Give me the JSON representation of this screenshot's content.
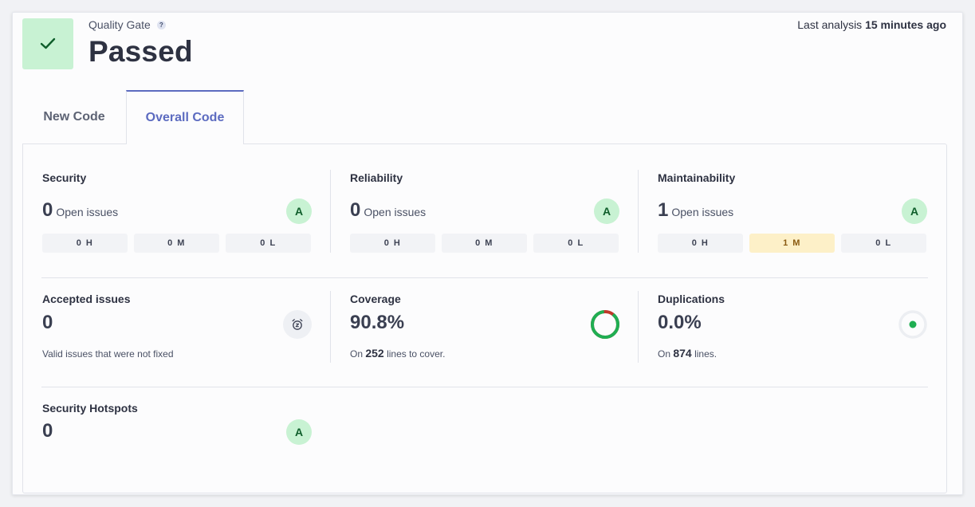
{
  "quality_gate": {
    "label": "Quality Gate",
    "help": "?",
    "status": "Passed"
  },
  "last_analysis": {
    "prefix": "Last analysis",
    "value": "15 minutes ago"
  },
  "tabs": [
    {
      "label": "New Code",
      "active": false
    },
    {
      "label": "Overall Code",
      "active": true
    }
  ],
  "security": {
    "title": "Security",
    "count": "0",
    "label": "Open issues",
    "rating": "A",
    "chips": [
      {
        "label": "0 H"
      },
      {
        "label": "0 M"
      },
      {
        "label": "0 L"
      }
    ]
  },
  "reliability": {
    "title": "Reliability",
    "count": "0",
    "label": "Open issues",
    "rating": "A",
    "chips": [
      {
        "label": "0 H"
      },
      {
        "label": "0 M"
      },
      {
        "label": "0 L"
      }
    ]
  },
  "maintainability": {
    "title": "Maintainability",
    "count": "1",
    "label": "Open issues",
    "rating": "A",
    "chips": [
      {
        "label": "0 H"
      },
      {
        "label": "1 M"
      },
      {
        "label": "0 L"
      }
    ]
  },
  "accepted": {
    "title": "Accepted issues",
    "value": "0",
    "description": "Valid issues that were not fixed"
  },
  "coverage": {
    "title": "Coverage",
    "value": "90.8%",
    "percent": 90.8,
    "sub_prefix": "On",
    "sub_value": "252",
    "sub_suffix": "lines to cover."
  },
  "duplications": {
    "title": "Duplications",
    "value": "0.0%",
    "sub_prefix": "On",
    "sub_value": "874",
    "sub_suffix": "lines."
  },
  "hotspots": {
    "title": "Security Hotspots",
    "value": "0",
    "rating": "A"
  },
  "colors": {
    "accent": "#5c6bc0",
    "pass_bg": "#c8f2d3",
    "pass_fg": "#0f5e2b",
    "coverage_good": "#1fae52",
    "coverage_bad": "#c0392b",
    "warn_chip": "#fdf0c8"
  },
  "icons": {
    "gate": "check-icon",
    "accepted": "alarm-clock-icon"
  }
}
